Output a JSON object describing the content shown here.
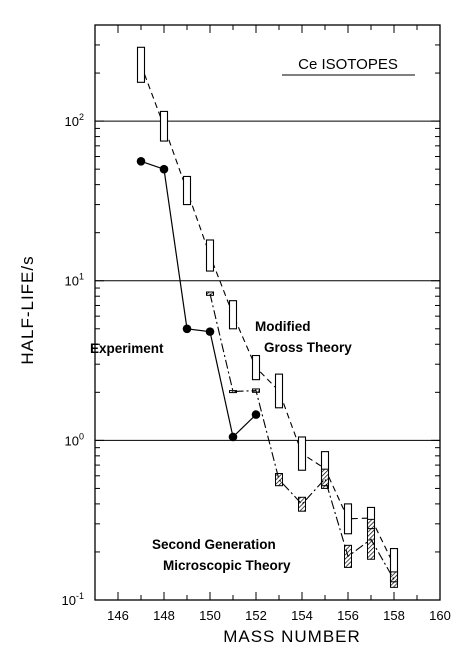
{
  "chart_data": {
    "type": "scatter",
    "title": "Ce ISOTOPES",
    "xlabel": "MASS NUMBER",
    "ylabel": "HALF-LIFE/s",
    "xlim": [
      145,
      160
    ],
    "ylim": [
      0.1,
      400
    ],
    "yscale": "log",
    "x_ticks": [
      146,
      148,
      150,
      152,
      154,
      156,
      158,
      160
    ],
    "x_tick_labels": [
      "146",
      "148",
      "150",
      "152",
      "154",
      "156",
      "158",
      "160"
    ],
    "y_ticks": [
      {
        "value": 0.1,
        "base": "10",
        "exp": "-1"
      },
      {
        "value": 1,
        "base": "10",
        "exp": "0"
      },
      {
        "value": 10,
        "base": "10",
        "exp": "1"
      },
      {
        "value": 100,
        "base": "10",
        "exp": "2"
      }
    ],
    "reference_lines": [
      1,
      10,
      100
    ],
    "series": [
      {
        "style": "solid-line-filled-circles",
        "x": [
          147,
          148,
          149,
          150,
          151,
          152
        ],
        "y": [
          56,
          50,
          5.0,
          4.8,
          1.05,
          1.45
        ]
      },
      {
        "style": "dashed-line-open-bars",
        "x": [
          147,
          148,
          149,
          150,
          151,
          152,
          153,
          154,
          155,
          156,
          157,
          158
        ],
        "y_low": [
          175,
          75,
          30,
          11.5,
          5.0,
          2.4,
          1.6,
          0.65,
          0.52,
          0.26,
          0.28,
          0.13
        ],
        "y_high": [
          290,
          115,
          45,
          18,
          7.5,
          3.4,
          2.6,
          1.05,
          0.85,
          0.4,
          0.38,
          0.21
        ]
      },
      {
        "style": "dash-dot-line-hatched-bars",
        "x": [
          150,
          151,
          152,
          153,
          154,
          155,
          156,
          157,
          158
        ],
        "y_low": [
          8.1,
          2.0,
          2.0,
          0.52,
          0.36,
          0.5,
          0.16,
          0.18,
          0.12
        ],
        "y_high": [
          8.5,
          2.05,
          2.1,
          0.62,
          0.44,
          0.66,
          0.22,
          0.32,
          0.15
        ]
      }
    ],
    "annotations": {
      "experiment": "Experiment",
      "gross_line1": "Modified",
      "gross_line2": "Gross Theory",
      "micro_line1": "Second Generation",
      "micro_line2": "Microscopic Theory"
    }
  }
}
